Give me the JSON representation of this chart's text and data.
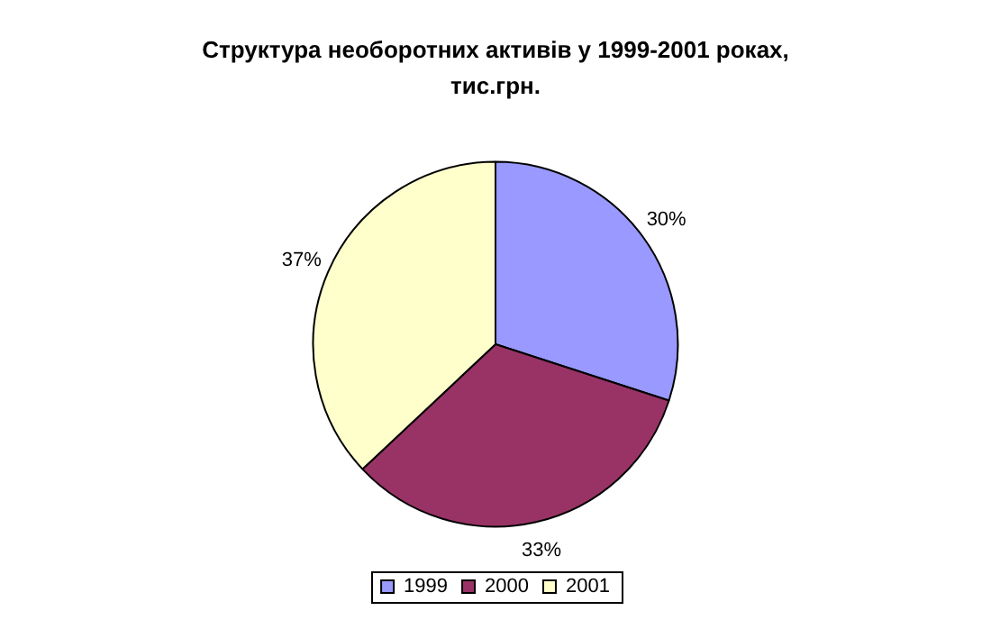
{
  "chart_data": {
    "type": "pie",
    "title": "Структура необоротних активів у 1999-2001 роках, тис.грн.",
    "categories": [
      "1999",
      "2000",
      "2001"
    ],
    "values": [
      30,
      33,
      37
    ],
    "colors": [
      "#9999ff",
      "#993366",
      "#ffffcc"
    ],
    "value_labels": [
      "30%",
      "33%",
      "37%"
    ],
    "legend": "bottom"
  }
}
